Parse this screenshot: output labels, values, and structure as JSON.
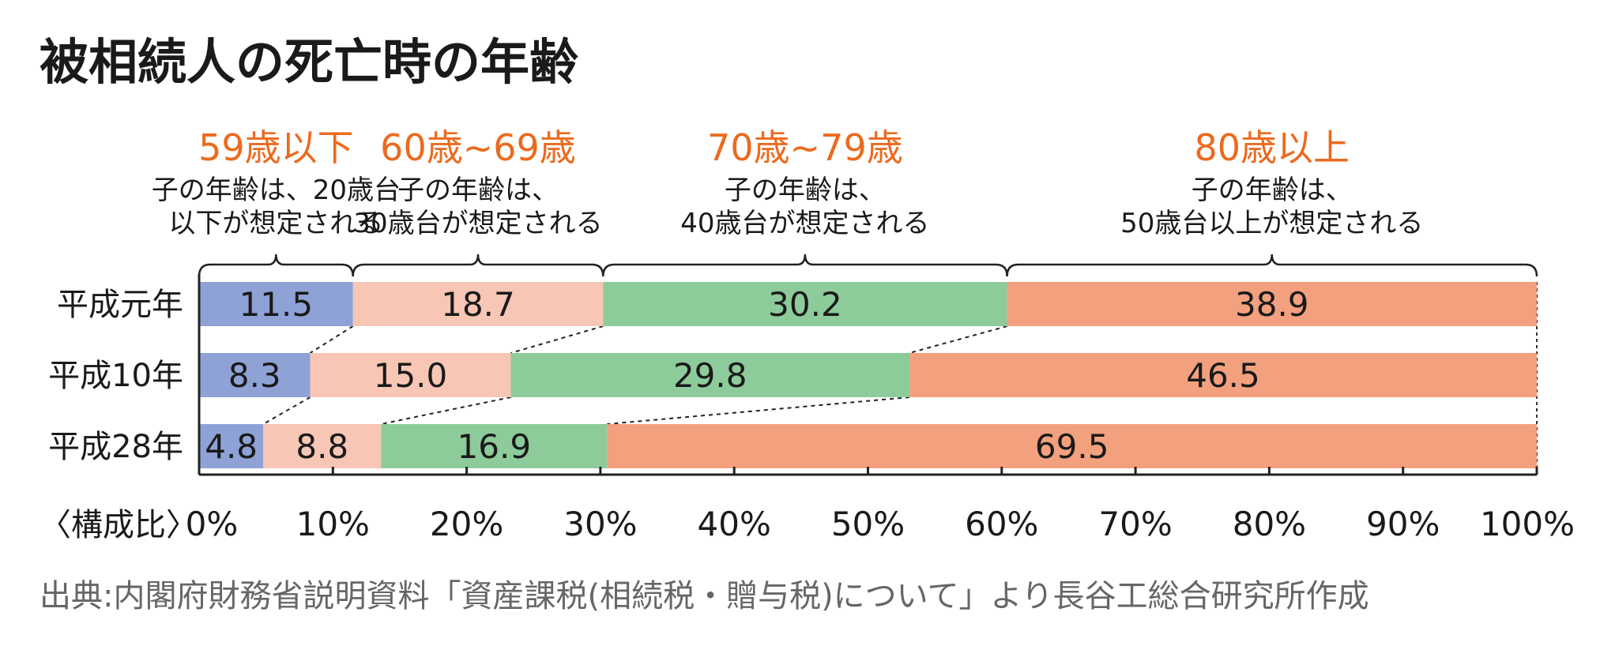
{
  "title": "被相続人の死亡時の年齢",
  "source": "出典:内閣府財務省説明資料「資産課税(相続税・贈与税)について」より長谷工総合研究所作成",
  "colors": {
    "seg0": "#8ea2d6",
    "seg1": "#f7c6b5",
    "seg2": "#8dcb9a",
    "seg3": "#f2a07e",
    "accent": "#ec6a1e",
    "text": "#1a1a1a",
    "source_text": "#666666"
  },
  "chart_data": {
    "type": "bar",
    "orientation": "horizontal",
    "stacked": "percent",
    "title": "被相続人の死亡時の年齢",
    "axis_label": "〈構成比〉",
    "xlim": [
      0,
      100
    ],
    "tick_labels": [
      "0%",
      "10%",
      "20%",
      "30%",
      "40%",
      "50%",
      "60%",
      "70%",
      "80%",
      "90%",
      "100%"
    ],
    "categories": [
      "平成元年",
      "平成10年",
      "平成28年"
    ],
    "series": [
      {
        "name": "59歳以下",
        "description": [
          "子の年齢は、20歳台",
          "以下が想定される"
        ],
        "values": [
          11.5,
          8.3,
          4.8
        ]
      },
      {
        "name": "60歳~69歳",
        "description": [
          "子の年齢は、",
          "30歳台が想定される"
        ],
        "values": [
          18.7,
          15.0,
          8.8
        ]
      },
      {
        "name": "70歳~79歳",
        "description": [
          "子の年齢は、",
          "40歳台が想定される"
        ],
        "values": [
          30.2,
          29.8,
          16.9
        ]
      },
      {
        "name": "80歳以上",
        "description": [
          "子の年齢は、",
          "50歳台以上が想定される"
        ],
        "values": [
          38.9,
          46.5,
          69.5
        ]
      }
    ]
  }
}
